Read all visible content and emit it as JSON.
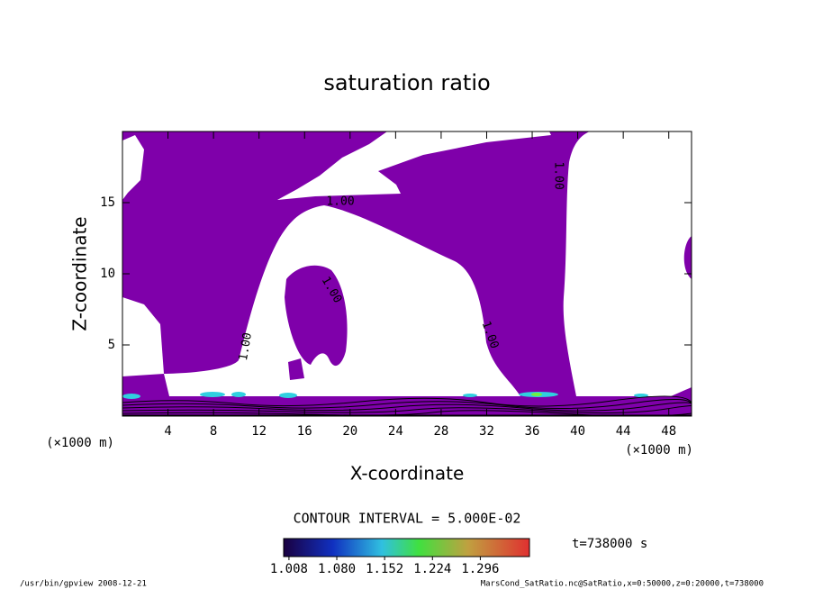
{
  "chart_data": {
    "type": "contour",
    "title": "saturation ratio",
    "x_label": "X-coordinate",
    "y_label": "Z-coordinate",
    "unit_label": "(×1000 m)",
    "xlim": [
      0,
      50
    ],
    "ylim": [
      0,
      20
    ],
    "xticks": [
      4,
      8,
      12,
      16,
      20,
      24,
      28,
      32,
      36,
      40,
      44,
      48
    ],
    "yticks": [
      5,
      10,
      15
    ],
    "fill_color": "#7f00aa",
    "contour_labels": [
      "1.00",
      "1.00",
      "1.00",
      "1.00",
      "1.00"
    ],
    "contour_interval": "CONTOUR INTERVAL = 5.000E-02",
    "time": "t=738000 s",
    "colorbar": {
      "clim": [
        1.0,
        1.37
      ],
      "ticks": [
        1.008,
        {
          "value": 1.08,
          "label": "1.080"
        },
        1.152,
        1.224,
        1.296
      ]
    }
  },
  "footer": {
    "left": "/usr/bin/gpview  2008-12-21",
    "right": "MarsCond_SatRatio.nc@SatRatio,x=0:50000,z=0:20000,t=738000"
  }
}
